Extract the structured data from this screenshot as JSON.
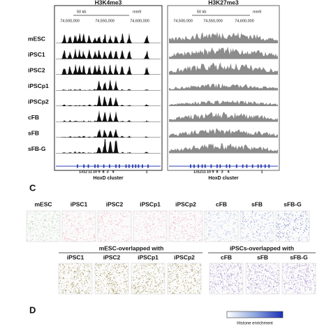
{
  "panels": [
    {
      "title": "H3K4me3",
      "scale": "50 kb",
      "assembly": "mm9",
      "coords": [
        "74,500,000",
        "74,550,000",
        "74,600,000"
      ],
      "cluster": "HoxD cluster",
      "genes": [
        "13",
        "12",
        "11",
        "10",
        "9",
        "8",
        "3",
        "4",
        "1"
      ]
    },
    {
      "title": "H3K27me3",
      "scale": "50 kb",
      "assembly": "mm9",
      "coords": [
        "74,500,000",
        "74,550,000",
        "74,600,000"
      ],
      "cluster": "HoxD cluster",
      "genes": [
        "13",
        "12",
        "11",
        "10",
        "9",
        "8",
        "3",
        "4",
        "1"
      ]
    }
  ],
  "rows": [
    "mESC",
    "iPSC1",
    "iPSC2",
    "iPSCp1",
    "iPSCp2",
    "cFB",
    "sFB",
    "sFB-G"
  ],
  "section_c": {
    "letter": "C",
    "top_labels": [
      "mESC",
      "iPSC1",
      "iPSC2",
      "iPSCp1",
      "iPSCp2",
      "cFB",
      "sFB",
      "sFB-G"
    ],
    "groups": [
      {
        "title": "mESC-overlapped with",
        "labels": [
          "iPSC1",
          "iPSC2",
          "iPSCp1",
          "iPSCp2"
        ]
      },
      {
        "title": "iPSCs-overlapped with",
        "labels": [
          "cFB",
          "sFB",
          "sFB-G"
        ]
      }
    ]
  },
  "section_d": {
    "letter": "D",
    "legend": "Histone enrichment"
  }
}
